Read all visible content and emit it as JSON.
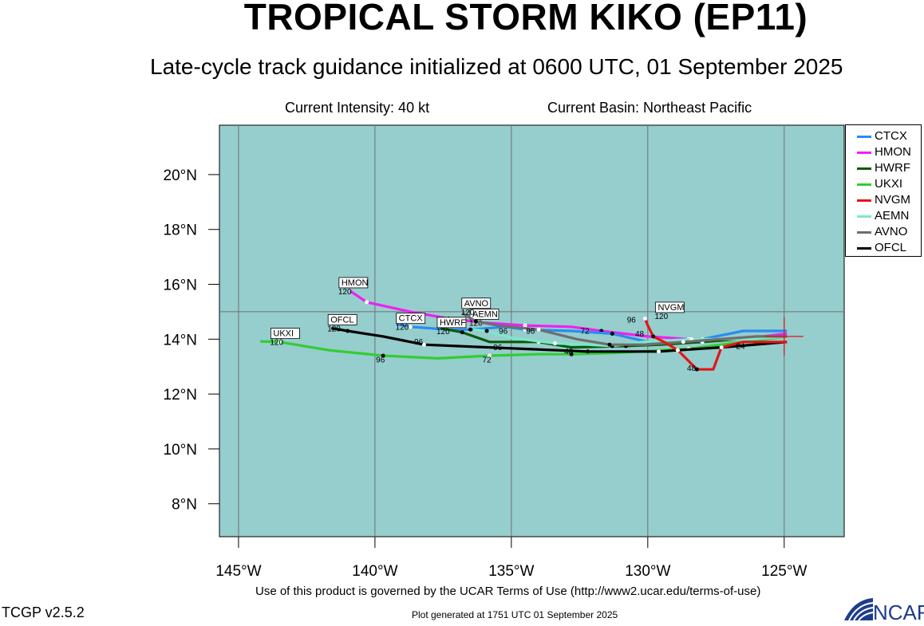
{
  "header": {
    "title": "TROPICAL STORM KIKO (EP11)",
    "subtitle": "Late-cycle track guidance initialized at 0600 UTC, 01 September 2025",
    "intensity": "Current Intensity: 40 kt",
    "basin": "Current Basin: Northeast Pacific"
  },
  "footer": {
    "terms": "Use of this product is governed by the UCAR Terms of Use (http://www2.ucar.edu/terms-of-use)",
    "generated": "Plot generated at 1751 UTC   01 September 2025",
    "version": "TCGP v2.5.2",
    "logo_text": "NCAR"
  },
  "colors": {
    "ocean": "#96cdcd",
    "grid": "#707070",
    "CTCX": "#2a8cf0",
    "HMON": "#f020f0",
    "HWRF": "#0a5a0a",
    "UKXI": "#32cd32",
    "NVGM": "#e61414",
    "AEMN": "#7de8c8",
    "AVNO": "#6e6e6e",
    "OFCL": "#000000"
  },
  "map": {
    "lon_range": [
      -145.7,
      -122.8
    ],
    "lat_range": [
      6.8,
      21.8
    ],
    "lon_ticks": [
      -145,
      -140,
      -135,
      -130,
      -125
    ],
    "lon_tick_labels": [
      "145°W",
      "140°W",
      "135°W",
      "130°W",
      "125°W"
    ],
    "lat_ticks": [
      8,
      10,
      12,
      14,
      16,
      18,
      20
    ],
    "lat_tick_labels": [
      "8°N",
      "10°N",
      "12°N",
      "14°N",
      "16°N",
      "18°N",
      "20°N"
    ],
    "grid_lons": [
      -145,
      -140,
      -135,
      -130,
      -125
    ],
    "grid_lats": [
      15
    ],
    "storm_position": [
      -125.0,
      14.1
    ],
    "legend": [
      "CTCX",
      "HMON",
      "HWRF",
      "UKXI",
      "NVGM",
      "AEMN",
      "AVNO",
      "OFCL"
    ]
  },
  "chart_data": {
    "type": "map-tracks",
    "tracks": [
      {
        "name": "UKXI",
        "points": [
          [
            -124.9,
            14.1
          ],
          [
            -126.5,
            13.9
          ],
          [
            -128.5,
            13.65
          ],
          [
            -131.2,
            13.5
          ],
          [
            -132.8,
            13.45
          ],
          [
            -134.0,
            13.45
          ],
          [
            -135.8,
            13.4
          ],
          [
            -137.7,
            13.3
          ],
          [
            -139.7,
            13.4
          ],
          [
            -141.7,
            13.6
          ],
          [
            -143.5,
            13.9
          ],
          [
            -144.2,
            13.92
          ]
        ],
        "label_pts": [
          [
            -139.8,
            13.15,
            "96"
          ],
          [
            -135.9,
            13.15,
            "72"
          ]
        ],
        "end_tag": [
          -143.7,
          14.05,
          "UKXI"
        ],
        "end_num": "120"
      },
      {
        "name": "OFCL",
        "points": [
          [
            -124.9,
            13.9
          ],
          [
            -127.3,
            13.7
          ],
          [
            -129.6,
            13.55
          ],
          [
            -131.5,
            13.55
          ],
          [
            -132.2,
            13.55
          ],
          [
            -134.6,
            13.65
          ],
          [
            -138.2,
            13.8
          ],
          [
            -139.7,
            14.1
          ],
          [
            -141.0,
            14.3
          ],
          [
            -141.6,
            14.4
          ]
        ],
        "label_pts": [
          [
            -138.4,
            13.8,
            "96"
          ],
          [
            -132.9,
            13.45,
            "48"
          ]
        ],
        "end_tag": [
          -141.6,
          14.55,
          "OFCL"
        ],
        "end_num": "120"
      },
      {
        "name": "HMON",
        "points": [
          [
            -124.9,
            14.2
          ],
          [
            -126.6,
            14.0
          ],
          [
            -128.5,
            14.0
          ],
          [
            -130.0,
            14.1
          ],
          [
            -131.7,
            14.3
          ],
          [
            -132.8,
            14.45
          ],
          [
            -134.5,
            14.5
          ],
          [
            -136.0,
            14.6
          ],
          [
            -137.3,
            14.75
          ],
          [
            -138.7,
            15.0
          ],
          [
            -140.3,
            15.35
          ],
          [
            -140.9,
            15.75
          ]
        ],
        "label_pts": [],
        "end_tag": [
          -141.2,
          15.9,
          "HMON"
        ],
        "end_num": "120"
      },
      {
        "name": "CTCX",
        "points": [
          [
            -124.9,
            14.3
          ],
          [
            -126.5,
            14.3
          ],
          [
            -128.0,
            14.0
          ],
          [
            -130.0,
            13.9
          ],
          [
            -131.3,
            14.2
          ],
          [
            -132.8,
            14.3
          ],
          [
            -134.5,
            14.35
          ],
          [
            -135.2,
            14.45
          ],
          [
            -136.5,
            14.35
          ],
          [
            -137.3,
            14.35
          ],
          [
            -138.7,
            14.45
          ],
          [
            -139.2,
            14.55
          ]
        ],
        "label_pts": [],
        "end_tag": [
          -139.1,
          14.6,
          "CTCX"
        ],
        "end_num": "120"
      },
      {
        "name": "HWRF",
        "points": [
          [
            -124.9,
            14.1
          ],
          [
            -126.7,
            14.0
          ],
          [
            -128.0,
            13.9
          ],
          [
            -129.5,
            13.8
          ],
          [
            -130.8,
            13.75
          ],
          [
            -132.8,
            13.7
          ],
          [
            -134.0,
            13.9
          ],
          [
            -135.8,
            13.9
          ],
          [
            -136.8,
            14.25
          ],
          [
            -137.6,
            14.4
          ]
        ],
        "label_pts": [
          [
            -135.5,
            13.6,
            "96"
          ]
        ],
        "end_tag": [
          -137.6,
          14.45,
          "HWRF"
        ],
        "end_num": "120"
      },
      {
        "name": "AEMN",
        "points": [
          [
            -124.9,
            14.1
          ],
          [
            -126.2,
            14.0
          ],
          [
            -128.4,
            14.0
          ],
          [
            -130.2,
            13.9
          ],
          [
            -131.3,
            13.75
          ],
          [
            -132.2,
            13.8
          ],
          [
            -133.4,
            13.85
          ],
          [
            -135.0,
            14.05
          ],
          [
            -135.9,
            14.3
          ],
          [
            -136.4,
            14.35
          ]
        ],
        "label_pts": [
          [
            -135.3,
            14.2,
            "96"
          ]
        ],
        "end_tag": [
          -136.4,
          14.75,
          "AEMN"
        ],
        "end_num": "120"
      },
      {
        "name": "AVNO",
        "points": [
          [
            -124.9,
            14.1
          ],
          [
            -126.0,
            14.1
          ],
          [
            -128.7,
            13.9
          ],
          [
            -130.1,
            13.8
          ],
          [
            -131.4,
            13.8
          ],
          [
            -132.6,
            14.0
          ],
          [
            -134.0,
            14.35
          ],
          [
            -135.5,
            14.5
          ],
          [
            -136.3,
            14.65
          ],
          [
            -136.8,
            14.95
          ]
        ],
        "label_pts": [
          [
            -134.3,
            14.2,
            "96"
          ],
          [
            -132.3,
            14.2,
            "72"
          ]
        ],
        "end_tag": [
          -136.7,
          15.15,
          "AVNO"
        ],
        "end_num": "120"
      },
      {
        "name": "NVGM",
        "points": [
          [
            -124.9,
            13.9
          ],
          [
            -126.5,
            13.9
          ],
          [
            -127.3,
            13.7
          ],
          [
            -127.6,
            12.9
          ],
          [
            -128.2,
            12.9
          ],
          [
            -128.6,
            13.3
          ],
          [
            -128.9,
            13.6
          ],
          [
            -129.4,
            13.9
          ],
          [
            -129.8,
            14.1
          ],
          [
            -130.0,
            14.5
          ],
          [
            -130.1,
            14.75
          ]
        ],
        "label_pts": [
          [
            -130.6,
            14.6,
            "96"
          ],
          [
            -128.4,
            12.85,
            "48"
          ],
          [
            -126.6,
            13.65,
            "24"
          ],
          [
            -130.3,
            14.1,
            "48"
          ]
        ],
        "end_tag": [
          -129.6,
          15.0,
          "NVGM"
        ],
        "end_num": "120"
      }
    ]
  }
}
